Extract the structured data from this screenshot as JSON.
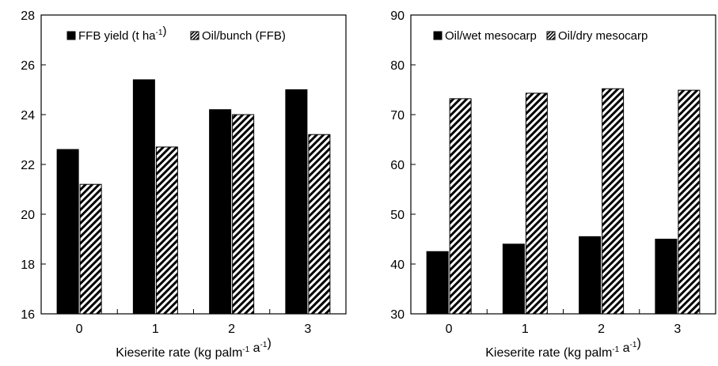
{
  "chart_data": [
    {
      "type": "bar",
      "categories": [
        "0",
        "1",
        "2",
        "3"
      ],
      "series": [
        {
          "name": "FFB yield (t ha⁻¹)",
          "values": [
            22.6,
            25.4,
            24.2,
            25.0
          ],
          "fill": "solid"
        },
        {
          "name": "Oil/bunch (FFB)",
          "values": [
            21.2,
            22.7,
            24.0,
            23.2
          ],
          "fill": "hatched"
        }
      ],
      "xlabel": "Kieserite rate (kg palm⁻¹ a⁻¹)",
      "ylabel": "",
      "ylim": [
        16,
        28
      ],
      "yticks": [
        "16",
        "18",
        "20",
        "22",
        "24",
        "26",
        "28"
      ],
      "grid": false,
      "legend": "top"
    },
    {
      "type": "bar",
      "categories": [
        "0",
        "1",
        "2",
        "3"
      ],
      "series": [
        {
          "name": "Oil/wet mesocarp",
          "values": [
            42.5,
            44.0,
            45.5,
            45.0
          ],
          "fill": "solid"
        },
        {
          "name": "Oil/dry mesocarp",
          "values": [
            73.2,
            74.3,
            75.2,
            74.9
          ],
          "fill": "hatched"
        }
      ],
      "xlabel": "Kieserite rate (kg palm⁻¹ a⁻¹)",
      "ylabel": "",
      "ylim": [
        30,
        90
      ],
      "yticks": [
        "30",
        "40",
        "50",
        "60",
        "70",
        "80",
        "90"
      ],
      "grid": false,
      "legend": "top"
    }
  ],
  "colors": {
    "bar": "#000000",
    "hatch_bg": "#ffffff"
  }
}
